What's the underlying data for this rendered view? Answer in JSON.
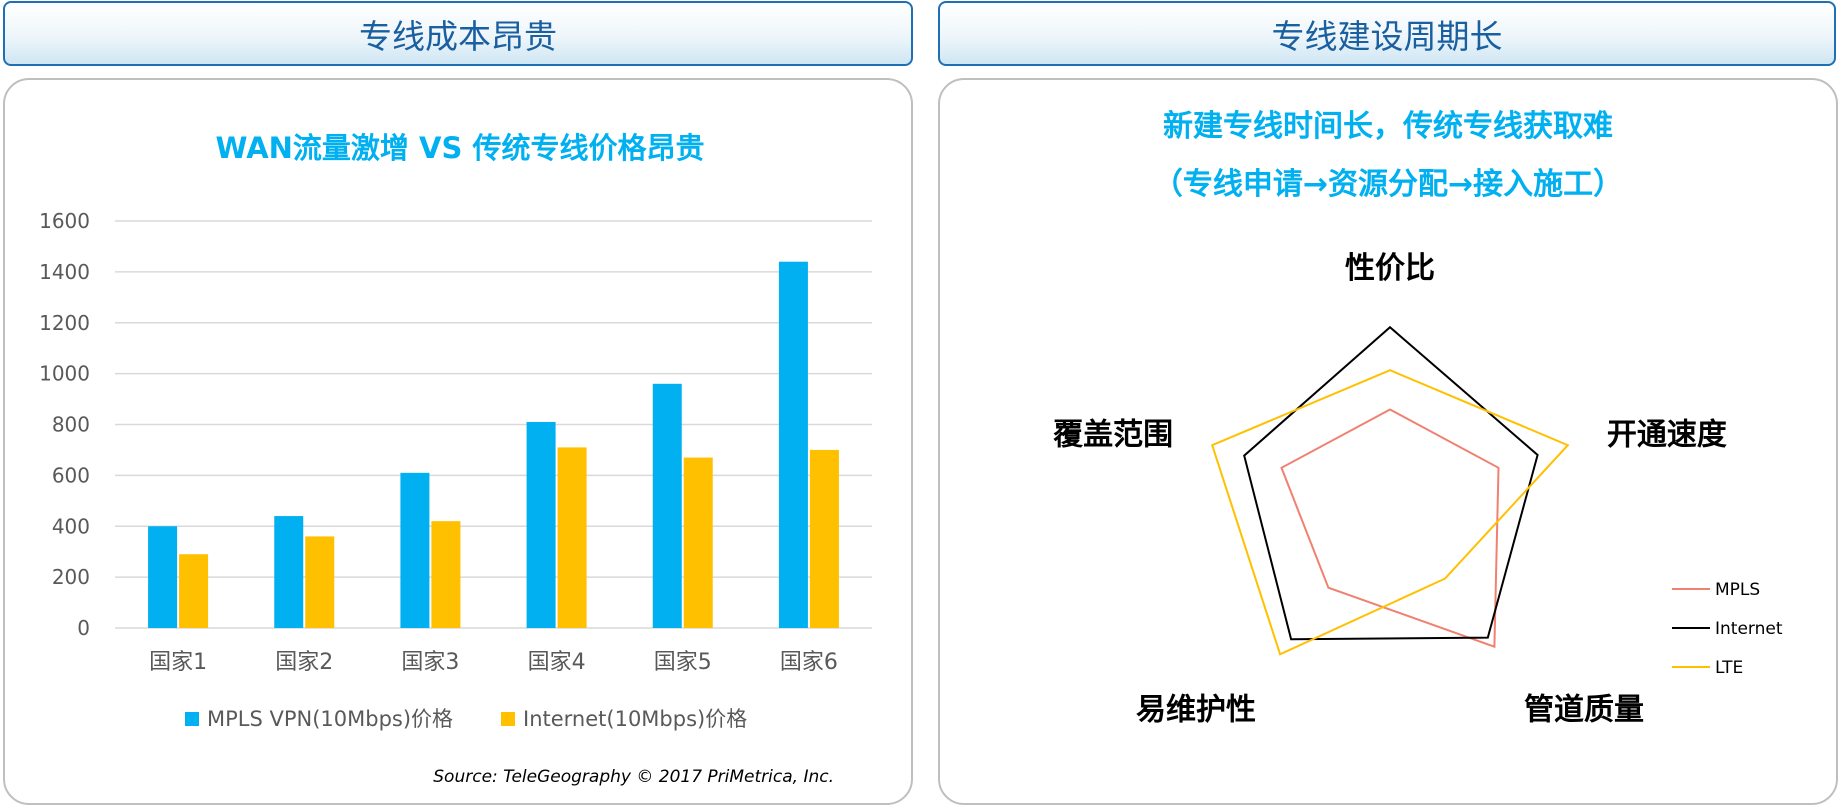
{
  "headers": {
    "left": "专线成本昂贵",
    "right": "专线建设周期长"
  },
  "left_panel": {
    "title": "WAN流量激增 VS 传统专线价格昂贵",
    "source": "Source: TeleGeography © 2017 PriMetrica, Inc."
  },
  "right_panel": {
    "title_line1": "新建专线时间长，传统专线获取难",
    "title_line2": "（专线申请→资源分配→接入施工）"
  },
  "colors": {
    "mpls_vpn": "#00B0F0",
    "internet_bar": "#FFC000",
    "radar_mpls": "#F08070",
    "radar_internet": "#000000",
    "radar_lte": "#FFC000",
    "title_blue": "#00B0F0"
  },
  "chart_data": [
    {
      "type": "bar",
      "title": "WAN流量激增 VS 传统专线价格昂贵",
      "categories": [
        "国家1",
        "国家2",
        "国家3",
        "国家4",
        "国家5",
        "国家6"
      ],
      "yticks": [
        "0",
        "200",
        "400",
        "600",
        "800",
        "1000",
        "1200",
        "1400",
        "1600"
      ],
      "ylim": [
        0,
        1600
      ],
      "grid": true,
      "legend_position": "bottom",
      "series": [
        {
          "name": "MPLS VPN(10Mbps)价格",
          "values": [
            400,
            440,
            610,
            810,
            960,
            1440
          ]
        },
        {
          "name": "Internet(10Mbps)价格",
          "values": [
            290,
            360,
            420,
            710,
            670,
            700
          ]
        }
      ]
    },
    {
      "type": "radar",
      "axes": [
        "性价比",
        "开通速度",
        "管道质量",
        "易维护性",
        "覆盖范围"
      ],
      "range": [
        0,
        1
      ],
      "legend_position": "right",
      "series": [
        {
          "name": "MPLS",
          "values": [
            0.5,
            0.61,
            0.95,
            0.56,
            0.61
          ]
        },
        {
          "name": "Internet",
          "values": [
            0.94,
            0.83,
            0.89,
            0.9,
            0.82
          ]
        },
        {
          "name": "LTE",
          "values": [
            0.71,
            1.0,
            0.5,
            1.0,
            1.0
          ]
        }
      ]
    }
  ]
}
